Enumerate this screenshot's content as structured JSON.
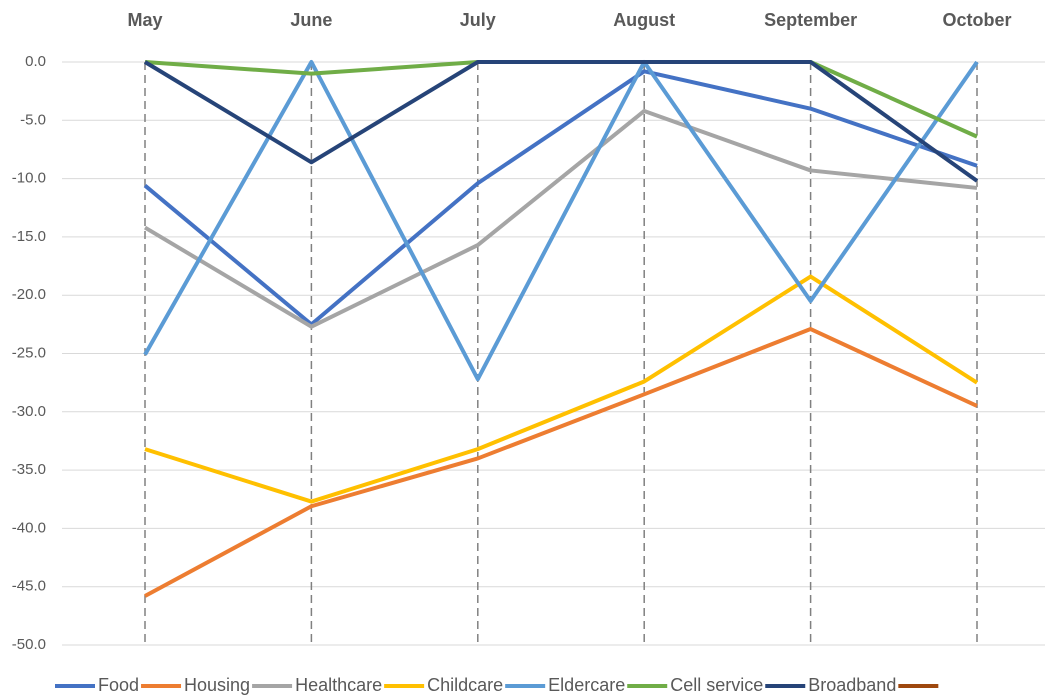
{
  "chart_data": {
    "type": "line",
    "categories": [
      "May",
      "June",
      "July",
      "August",
      "September",
      "October"
    ],
    "ylim": [
      -50,
      0
    ],
    "yticks": [
      {
        "value": 0,
        "label": "0.0"
      },
      {
        "value": -5,
        "label": "-5.0"
      },
      {
        "value": -10,
        "label": "-10.0"
      },
      {
        "value": -15,
        "label": "-15.0"
      },
      {
        "value": -20,
        "label": "-20.0"
      },
      {
        "value": -25,
        "label": "-25.0"
      },
      {
        "value": -30,
        "label": "-30.0"
      },
      {
        "value": -35,
        "label": "-35.0"
      },
      {
        "value": -40,
        "label": "-40.0"
      },
      {
        "value": -45,
        "label": "-45.0"
      },
      {
        "value": -50,
        "label": "-50.0"
      }
    ],
    "grid": true,
    "legend": "bottom",
    "series": [
      {
        "name": "Food",
        "color": "#4472c4",
        "values": [
          -10.6,
          -22.5,
          -10.4,
          -0.8,
          -4.0,
          -8.9
        ]
      },
      {
        "name": "Housing",
        "color": "#ed7d31",
        "values": [
          -45.8,
          -38.1,
          -34.0,
          -28.5,
          -22.9,
          -29.5
        ]
      },
      {
        "name": "Healthcare",
        "color": "#a5a5a5",
        "values": [
          -14.2,
          -22.7,
          -15.7,
          -4.2,
          -9.3,
          -10.8
        ]
      },
      {
        "name": "Childcare",
        "color": "#ffc000",
        "values": [
          -33.2,
          -37.7,
          -33.2,
          -27.4,
          -18.4,
          -27.5
        ]
      },
      {
        "name": "Eldercare",
        "color": "#5b9bd5",
        "values": [
          -25.1,
          0,
          -27.2,
          0,
          -20.5,
          0
        ]
      },
      {
        "name": "Cell service",
        "color": "#70ad47",
        "values": [
          0,
          -1.0,
          0,
          0,
          0,
          -6.4
        ]
      },
      {
        "name": "Broadband",
        "color": "#264478",
        "values": [
          0,
          -8.6,
          0,
          0,
          0,
          -10.2
        ]
      },
      {
        "name": null,
        "color": "#9e480e",
        "values": [
          null,
          null,
          null,
          null,
          null,
          null
        ]
      }
    ]
  }
}
